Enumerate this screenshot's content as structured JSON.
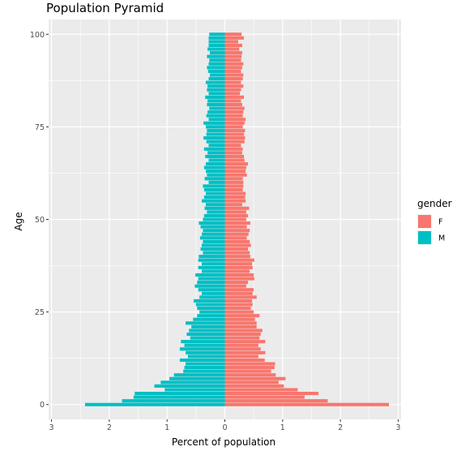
{
  "chart_data": {
    "type": "bar",
    "orientation": "horizontal",
    "title": "Population Pyramid",
    "xlabel": "Percent of population",
    "ylabel": "Age",
    "x_ticks": [
      -3,
      -2,
      -1,
      0,
      1,
      2,
      3
    ],
    "x_tick_labels": [
      "3",
      "2",
      "1",
      "0",
      "1",
      "2",
      "3"
    ],
    "y_ticks": [
      0,
      25,
      50,
      75,
      100
    ],
    "xlim": [
      -3.05,
      3.05
    ],
    "ylim": [
      -4,
      104
    ],
    "grid": true,
    "legend": {
      "title": "gender",
      "position": "right",
      "entries": [
        {
          "label": "F",
          "color": "#F8766D"
        },
        {
          "label": "M",
          "color": "#00BFC4"
        }
      ]
    },
    "age": [
      0,
      1,
      2,
      3,
      4,
      5,
      6,
      7,
      8,
      9,
      10,
      11,
      12,
      13,
      14,
      15,
      16,
      17,
      18,
      19,
      20,
      21,
      22,
      23,
      24,
      25,
      26,
      27,
      28,
      29,
      30,
      31,
      32,
      33,
      34,
      35,
      36,
      37,
      38,
      39,
      40,
      41,
      42,
      43,
      44,
      45,
      46,
      47,
      48,
      49,
      50,
      51,
      52,
      53,
      54,
      55,
      56,
      57,
      58,
      59,
      60,
      61,
      62,
      63,
      64,
      65,
      66,
      67,
      68,
      69,
      70,
      71,
      72,
      73,
      74,
      75,
      76,
      77,
      78,
      79,
      80,
      81,
      82,
      83,
      84,
      85,
      86,
      87,
      88,
      89,
      90,
      91,
      92,
      93,
      94,
      95,
      96,
      97,
      98,
      99,
      100
    ],
    "series": [
      {
        "name": "F",
        "color": "#F8766D",
        "values": [
          2.84,
          1.78,
          1.38,
          1.62,
          1.26,
          1.02,
          0.93,
          1.05,
          0.88,
          0.8,
          0.86,
          0.87,
          0.69,
          0.58,
          0.7,
          0.62,
          0.58,
          0.7,
          0.6,
          0.62,
          0.65,
          0.55,
          0.55,
          0.52,
          0.6,
          0.5,
          0.45,
          0.48,
          0.47,
          0.55,
          0.48,
          0.5,
          0.37,
          0.4,
          0.51,
          0.5,
          0.43,
          0.48,
          0.47,
          0.51,
          0.44,
          0.43,
          0.4,
          0.45,
          0.43,
          0.38,
          0.41,
          0.43,
          0.38,
          0.44,
          0.37,
          0.4,
          0.37,
          0.42,
          0.3,
          0.36,
          0.35,
          0.36,
          0.31,
          0.32,
          0.32,
          0.31,
          0.38,
          0.36,
          0.37,
          0.4,
          0.34,
          0.33,
          0.3,
          0.31,
          0.28,
          0.34,
          0.35,
          0.33,
          0.35,
          0.31,
          0.34,
          0.36,
          0.31,
          0.32,
          0.34,
          0.3,
          0.28,
          0.33,
          0.26,
          0.28,
          0.32,
          0.28,
          0.31,
          0.32,
          0.28,
          0.3,
          0.32,
          0.28,
          0.29,
          0.3,
          0.25,
          0.3,
          0.23,
          0.33,
          0.29
        ]
      },
      {
        "name": "M",
        "color": "#00BFC4",
        "values": [
          2.42,
          1.78,
          1.58,
          1.56,
          1.04,
          1.22,
          1.11,
          0.96,
          0.88,
          0.72,
          0.7,
          0.68,
          0.78,
          0.64,
          0.68,
          0.78,
          0.7,
          0.76,
          0.6,
          0.66,
          0.62,
          0.58,
          0.68,
          0.55,
          0.48,
          0.44,
          0.48,
          0.5,
          0.54,
          0.44,
          0.4,
          0.46,
          0.52,
          0.48,
          0.46,
          0.51,
          0.4,
          0.46,
          0.4,
          0.46,
          0.45,
          0.38,
          0.42,
          0.4,
          0.38,
          0.43,
          0.4,
          0.38,
          0.42,
          0.45,
          0.38,
          0.36,
          0.31,
          0.35,
          0.33,
          0.4,
          0.36,
          0.33,
          0.36,
          0.38,
          0.28,
          0.35,
          0.31,
          0.33,
          0.36,
          0.33,
          0.28,
          0.34,
          0.3,
          0.36,
          0.28,
          0.32,
          0.37,
          0.32,
          0.31,
          0.33,
          0.37,
          0.28,
          0.32,
          0.3,
          0.27,
          0.31,
          0.3,
          0.34,
          0.28,
          0.31,
          0.3,
          0.33,
          0.28,
          0.26,
          0.29,
          0.31,
          0.28,
          0.27,
          0.31,
          0.26,
          0.3,
          0.28,
          0.28,
          0.28,
          0.27
        ]
      }
    ]
  }
}
